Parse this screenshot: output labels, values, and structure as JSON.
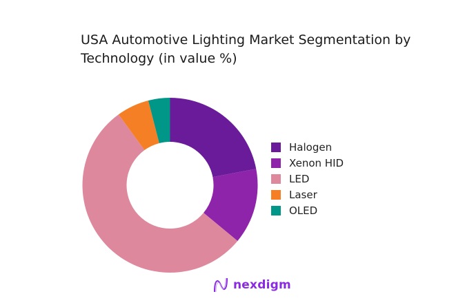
{
  "chart_data": {
    "type": "pie",
    "donut": true,
    "title": "USA Automotive Lighting Market Segmentation by Technology (in value %)",
    "categories": [
      "Halogen",
      "Xenon HID",
      "LED",
      "Laser",
      "OLED"
    ],
    "values": [
      22,
      14,
      54,
      6,
      4
    ],
    "colors": [
      "#6a1b9a",
      "#8e24aa",
      "#de889e",
      "#f57f25",
      "#009688"
    ],
    "legend_position": "right"
  },
  "logo": {
    "text": "nexdigm",
    "color": "#8a2be2"
  }
}
